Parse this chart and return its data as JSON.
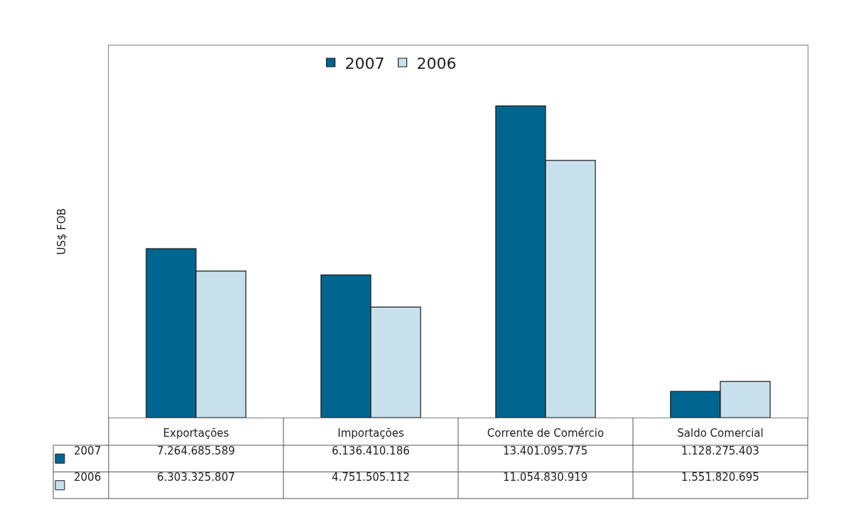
{
  "chart_data": {
    "type": "bar",
    "ylabel": "US$ FOB",
    "categories": [
      "Exportações",
      "Importações",
      "Corrente de Comércio",
      "Saldo Comercial"
    ],
    "series": [
      {
        "name": "2007",
        "color": "#00668f",
        "values": [
          7264685589,
          6136410186,
          13401095775,
          1128275403
        ],
        "value_labels": [
          "7.264.685.589",
          "6.136.410.186",
          "13.401.095.775",
          "1.128.275.403"
        ]
      },
      {
        "name": "2006",
        "color": "#c8e0ec",
        "values": [
          6303325807,
          4751505112,
          11054830919,
          1551820695
        ],
        "value_labels": [
          "6.303.325.807",
          "4.751.505.112",
          "11.054.830.919",
          "1.551.820.695"
        ]
      }
    ],
    "ylim": [
      0,
      16000000000
    ],
    "tick_labels": "x",
    "legend": "top"
  }
}
